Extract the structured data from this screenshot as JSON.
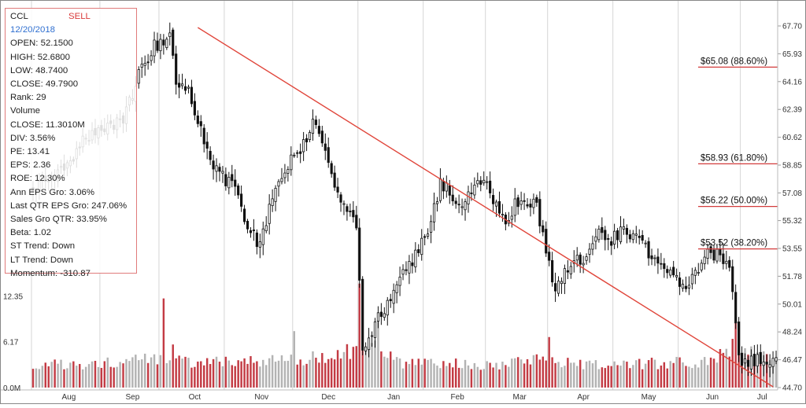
{
  "info": {
    "ticker": "CCL",
    "signal": "SELL",
    "date": "12/20/2018",
    "rows": [
      "OPEN: 52.1500",
      "HIGH: 52.6800",
      "LOW: 48.7400",
      "CLOSE: 49.7900",
      "Rank: 29",
      "Volume",
      "CLOSE: 11.3010M",
      "DIV: 3.56%",
      "PE: 13.41",
      "EPS: 2.36",
      "ROE: 12.30%",
      "Ann EPS Gro: 3.06%",
      "Last QTR EPS Gro: 247.06%",
      "Sales Gro QTR: 33.95%",
      "Beta: 1.02",
      "ST Trend: Down",
      "LT Trend: Down",
      "Momentum: -310.87"
    ]
  },
  "chart_data": {
    "type": "candlestick",
    "colors": {
      "up": "#9a9a9a",
      "down": "#c0303a",
      "trend": "#e0453a",
      "candle": "#111111",
      "fib": "#d23b3b"
    },
    "price_axis": {
      "min": 44.7,
      "max": 67.7,
      "ticks": [
        "67.70",
        "65.93",
        "64.16",
        "62.39",
        "60.62",
        "58.85",
        "57.08",
        "55.32",
        "53.55",
        "51.78",
        "50.01",
        "48.24",
        "46.47",
        "44.70"
      ]
    },
    "volume_axis": {
      "ticks": [
        "12.35",
        "6.17",
        "0.0M"
      ],
      "max": 14.5
    },
    "x_axis": {
      "months": [
        "Aug",
        "Sep",
        "Oct",
        "Nov",
        "Dec",
        "Jan",
        "Feb",
        "Mar",
        "Apr",
        "May",
        "Jun",
        "Jul"
      ],
      "month_start_index": [
        0,
        22,
        41,
        62,
        84,
        105,
        126,
        146,
        166,
        187,
        208,
        228
      ]
    },
    "fibonacci": [
      {
        "label": "$65.08 (88.60%)",
        "price": 65.08
      },
      {
        "label": "$58.93 (61.80%)",
        "price": 58.93
      },
      {
        "label": "$56.22 (50.00%)",
        "price": 56.22
      },
      {
        "label": "$53.52 (38.20%)",
        "price": 53.52
      }
    ],
    "trendline": {
      "start": {
        "index": 53,
        "price": 67.6
      },
      "end": {
        "index": 238,
        "price": 44.75
      }
    },
    "anchors": [
      [
        0,
        57.5
      ],
      [
        8,
        58.2
      ],
      [
        17,
        60.5
      ],
      [
        24,
        61.2
      ],
      [
        29,
        61.8
      ],
      [
        34,
        64.5
      ],
      [
        38,
        66.2
      ],
      [
        44,
        67.2
      ],
      [
        46,
        63.6
      ],
      [
        49,
        64.0
      ],
      [
        53,
        61.5
      ],
      [
        59,
        58.5
      ],
      [
        64,
        57.6
      ],
      [
        70,
        54.5
      ],
      [
        73,
        53.8
      ],
      [
        76,
        56.0
      ],
      [
        82,
        58.8
      ],
      [
        88,
        60.5
      ],
      [
        91,
        61.8
      ],
      [
        93,
        60.6
      ],
      [
        97,
        57.4
      ],
      [
        101,
        56.2
      ],
      [
        104,
        55.2
      ],
      [
        106,
        47.2
      ],
      [
        110,
        48.8
      ],
      [
        114,
        50.2
      ],
      [
        118,
        51.8
      ],
      [
        122,
        52.6
      ],
      [
        126,
        54.2
      ],
      [
        131,
        57.6
      ],
      [
        134,
        57.1
      ],
      [
        137,
        56.3
      ],
      [
        141,
        57.2
      ],
      [
        145,
        58.3
      ],
      [
        149,
        56.2
      ],
      [
        152,
        55.0
      ],
      [
        155,
        56.4
      ],
      [
        159,
        56.6
      ],
      [
        162,
        56.3
      ],
      [
        166,
        52.6
      ],
      [
        168,
        50.5
      ],
      [
        171,
        52.2
      ],
      [
        174,
        52.8
      ],
      [
        178,
        53.0
      ],
      [
        182,
        54.5
      ],
      [
        186,
        54.0
      ],
      [
        190,
        55.0
      ],
      [
        194,
        54.2
      ],
      [
        198,
        53.2
      ],
      [
        202,
        52.6
      ],
      [
        206,
        51.6
      ],
      [
        210,
        51.2
      ],
      [
        213,
        52.2
      ],
      [
        217,
        53.2
      ],
      [
        221,
        53.0
      ],
      [
        224,
        52.6
      ],
      [
        227,
        46.8
      ],
      [
        230,
        46.1
      ],
      [
        233,
        46.6
      ],
      [
        236,
        46.4
      ],
      [
        239,
        46.6
      ]
    ],
    "volume_anchors": [
      [
        0,
        3.0
      ],
      [
        30,
        3.4
      ],
      [
        42,
        4.2
      ],
      [
        53,
        3.3
      ],
      [
        84,
        3.6
      ],
      [
        100,
        4.6
      ],
      [
        106,
        6.0
      ],
      [
        118,
        3.3
      ],
      [
        150,
        3.0
      ],
      [
        165,
        3.8
      ],
      [
        175,
        3.0
      ],
      [
        190,
        3.2
      ],
      [
        215,
        3.4
      ],
      [
        226,
        5.6
      ],
      [
        232,
        4.3
      ],
      [
        239,
        3.7
      ]
    ],
    "volume_spikes": [
      [
        42,
        12.0
      ],
      [
        45,
        5.8
      ],
      [
        84,
        7.6
      ],
      [
        105,
        14.0
      ],
      [
        111,
        9.2
      ],
      [
        166,
        6.8
      ],
      [
        226,
        10.6
      ]
    ]
  }
}
